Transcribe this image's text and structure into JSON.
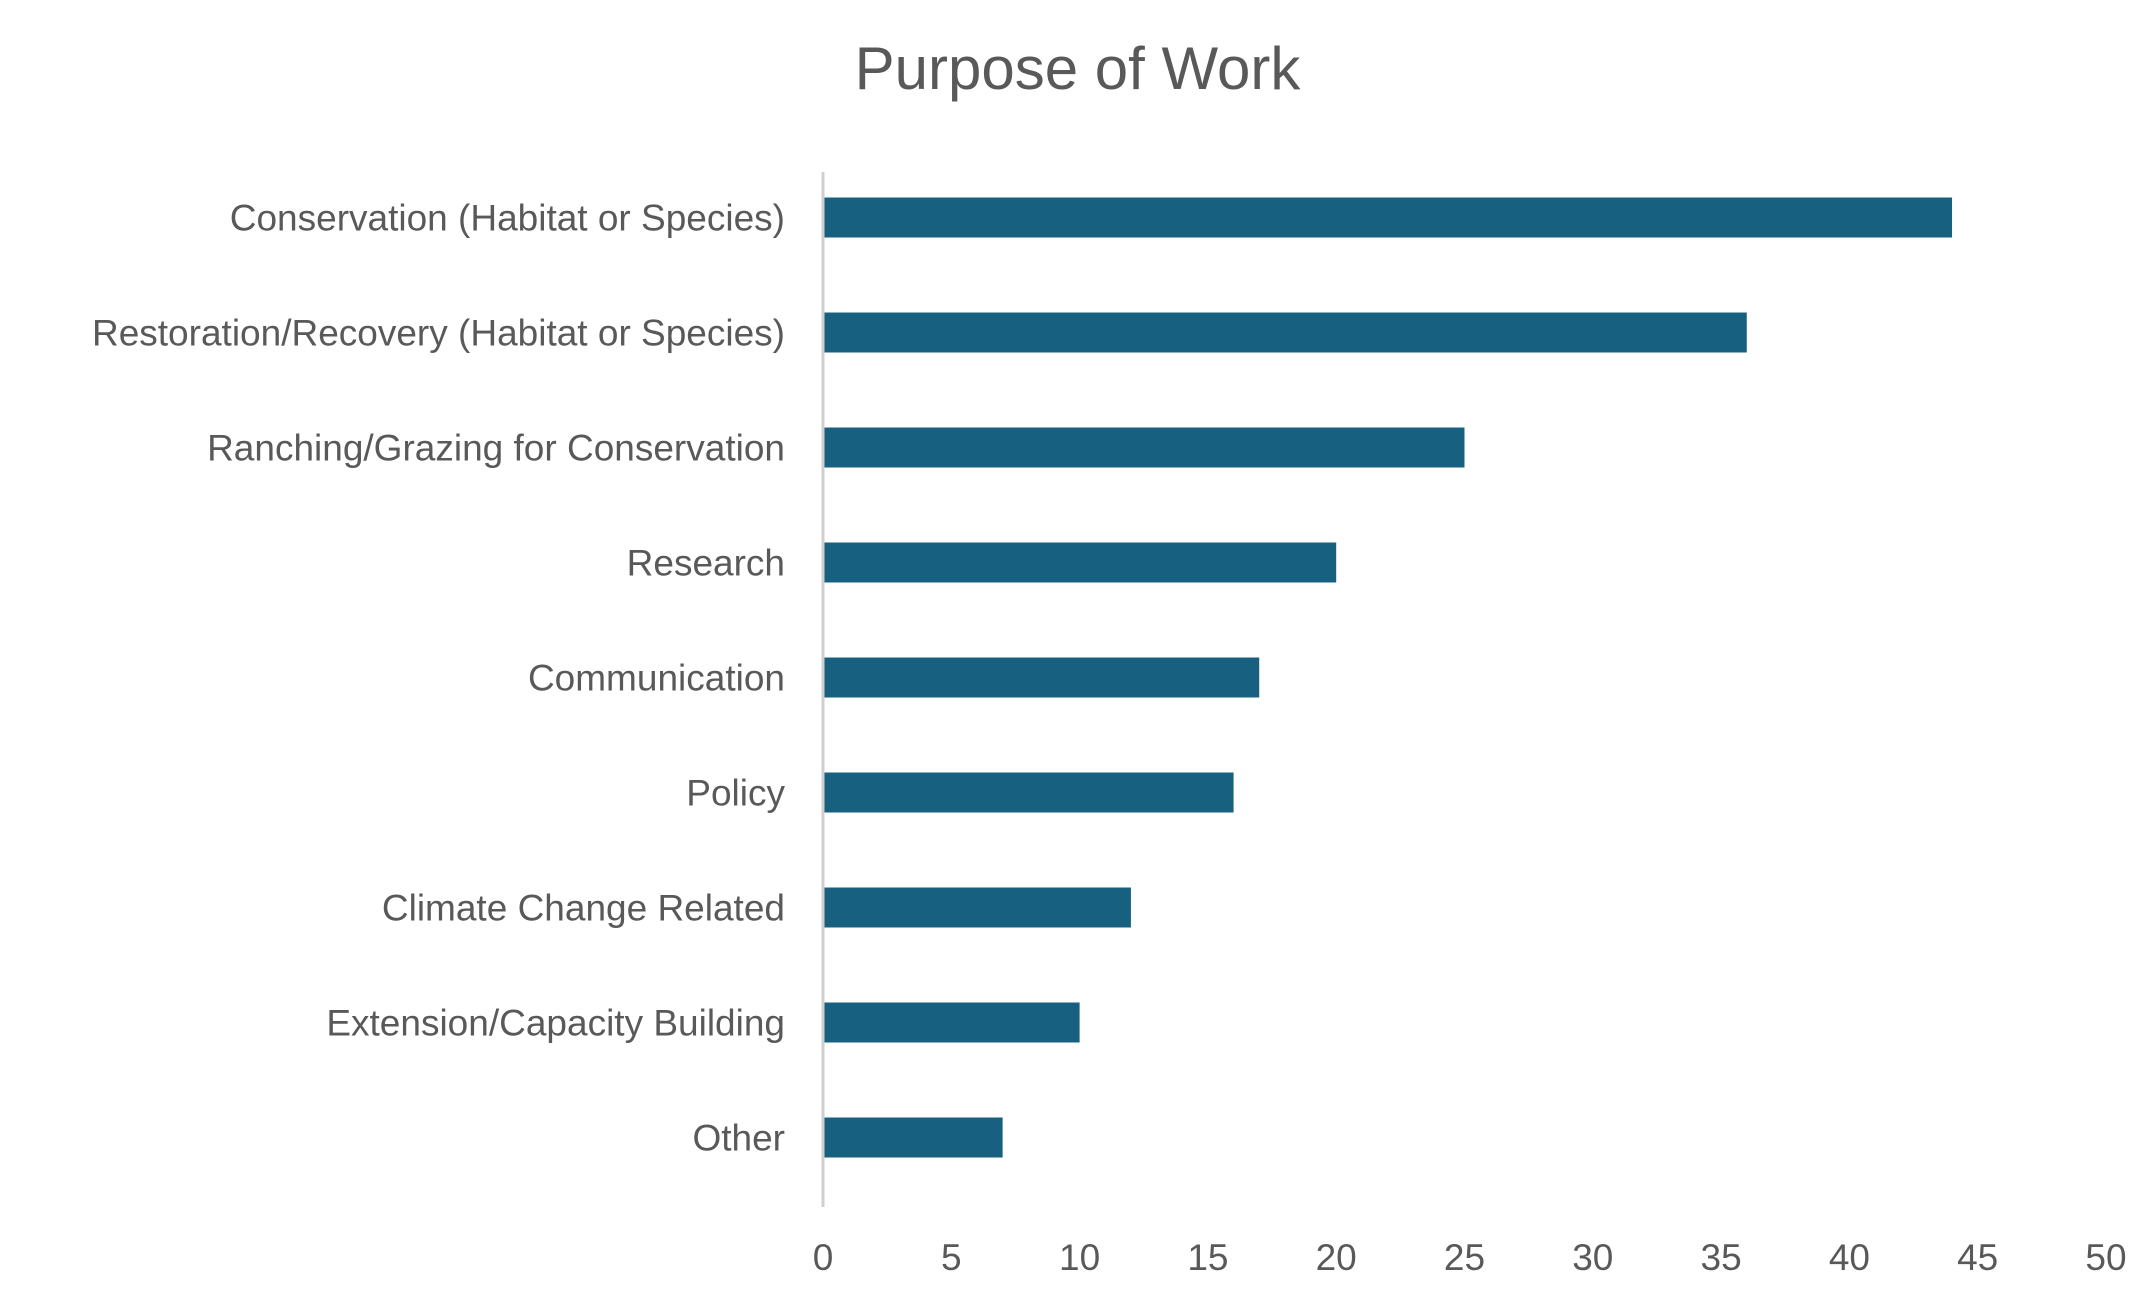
{
  "chart_data": {
    "type": "bar",
    "orientation": "horizontal",
    "title": "Purpose of Work",
    "xlabel": "",
    "ylabel": "",
    "categories": [
      "Conservation (Habitat or Species)",
      "Restoration/Recovery (Habitat or Species)",
      "Ranching/Grazing for Conservation",
      "Research",
      "Communication",
      "Policy",
      "Climate Change Related",
      "Extension/Capacity Building",
      "Other"
    ],
    "values": [
      44,
      36,
      25,
      20,
      17,
      16,
      12,
      10,
      7
    ],
    "xlim": [
      0,
      50
    ],
    "xticks": [
      "0",
      "5",
      "10",
      "15",
      "20",
      "25",
      "30",
      "35",
      "40",
      "45",
      "50"
    ],
    "grid": false,
    "legend": "none",
    "bar_color": "#17607f",
    "axis_color": "#d0d0d0"
  }
}
